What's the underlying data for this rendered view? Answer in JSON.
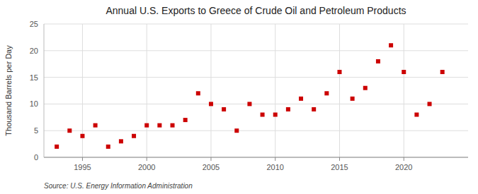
{
  "chart_data": {
    "type": "scatter",
    "title": "Annual U.S. Exports to Greece of Crude Oil and Petroleum Products",
    "ylabel": "Thousand Barrels per Day",
    "source": "Source: U.S. Energy Information Administration",
    "x": [
      1993,
      1994,
      1995,
      1996,
      1997,
      1998,
      1999,
      2000,
      2001,
      2002,
      2003,
      2004,
      2005,
      2006,
      2007,
      2008,
      2009,
      2010,
      2011,
      2012,
      2013,
      2014,
      2015,
      2016,
      2017,
      2018,
      2019,
      2020,
      2021,
      2022,
      2023
    ],
    "values": [
      2,
      5,
      4,
      6,
      2,
      3,
      4,
      6,
      6,
      6,
      7,
      12,
      10,
      9,
      5,
      10,
      8,
      8,
      9,
      11,
      9,
      12,
      16,
      11,
      13,
      18,
      21,
      16,
      8,
      10,
      16
    ],
    "color": "#cc0000",
    "marker": "square",
    "xlim": [
      1992,
      2025
    ],
    "ylim": [
      0,
      25
    ],
    "xticks": [
      1995,
      2000,
      2005,
      2010,
      2015,
      2020
    ],
    "yticks": [
      0,
      5,
      10,
      15,
      20,
      25
    ],
    "grid": true
  }
}
